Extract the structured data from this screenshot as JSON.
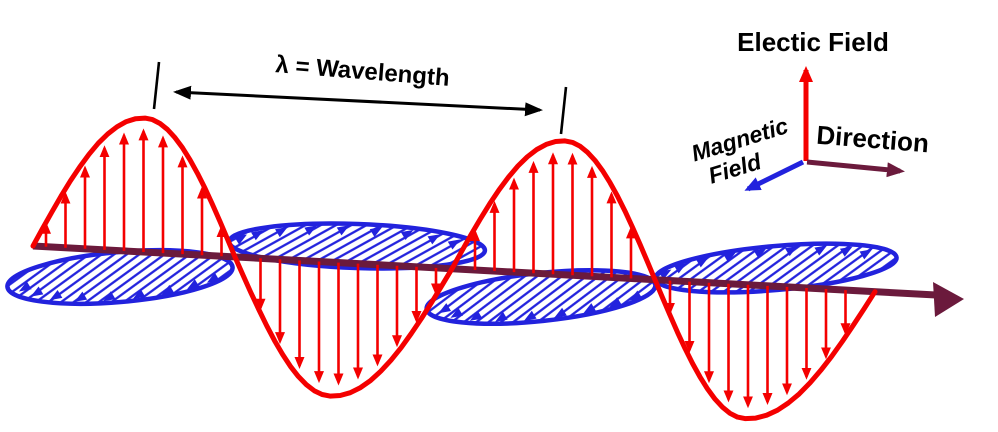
{
  "diagram": {
    "wavelength_label": "λ = Wavelength",
    "legend": {
      "electric_field_label": "Electic Field",
      "magnetic_field_label_line1": "Magnetic",
      "magnetic_field_label_line2": "Field",
      "direction_label": "Direction"
    },
    "colors": {
      "electric_wave": "#f40000",
      "magnetic_wave": "#2222dd",
      "propagation_axis": "#6b1a3c",
      "annotation": "#000000",
      "background": "#ffffff"
    }
  }
}
